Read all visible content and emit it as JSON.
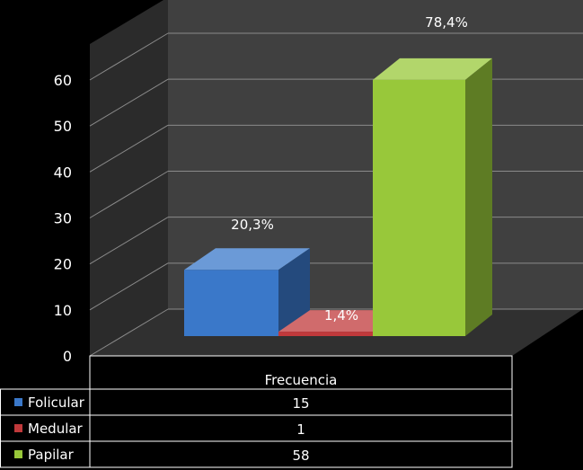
{
  "chart_data": {
    "type": "bar",
    "categories": [
      "Frecuencia"
    ],
    "series": [
      {
        "name": "Folicular",
        "values": [
          15
        ],
        "label": "20,3%",
        "color": "#3a78c9"
      },
      {
        "name": "Medular",
        "values": [
          1
        ],
        "label": "1,4%",
        "color": "#c0393b"
      },
      {
        "name": "Papilar",
        "values": [
          58
        ],
        "label": "78,4%",
        "color": "#98c83a"
      }
    ],
    "ylim": [
      0,
      60
    ],
    "yticks": [
      "0",
      "10",
      "20",
      "30",
      "40",
      "50",
      "60"
    ],
    "grid": true,
    "background": "#000000",
    "legend": "table-below",
    "table": {
      "header": "Frecuencia",
      "rows": [
        {
          "name": "Folicular",
          "value": "15"
        },
        {
          "name": "Medular",
          "value": "1"
        },
        {
          "name": "Papilar",
          "value": "58"
        }
      ]
    }
  }
}
